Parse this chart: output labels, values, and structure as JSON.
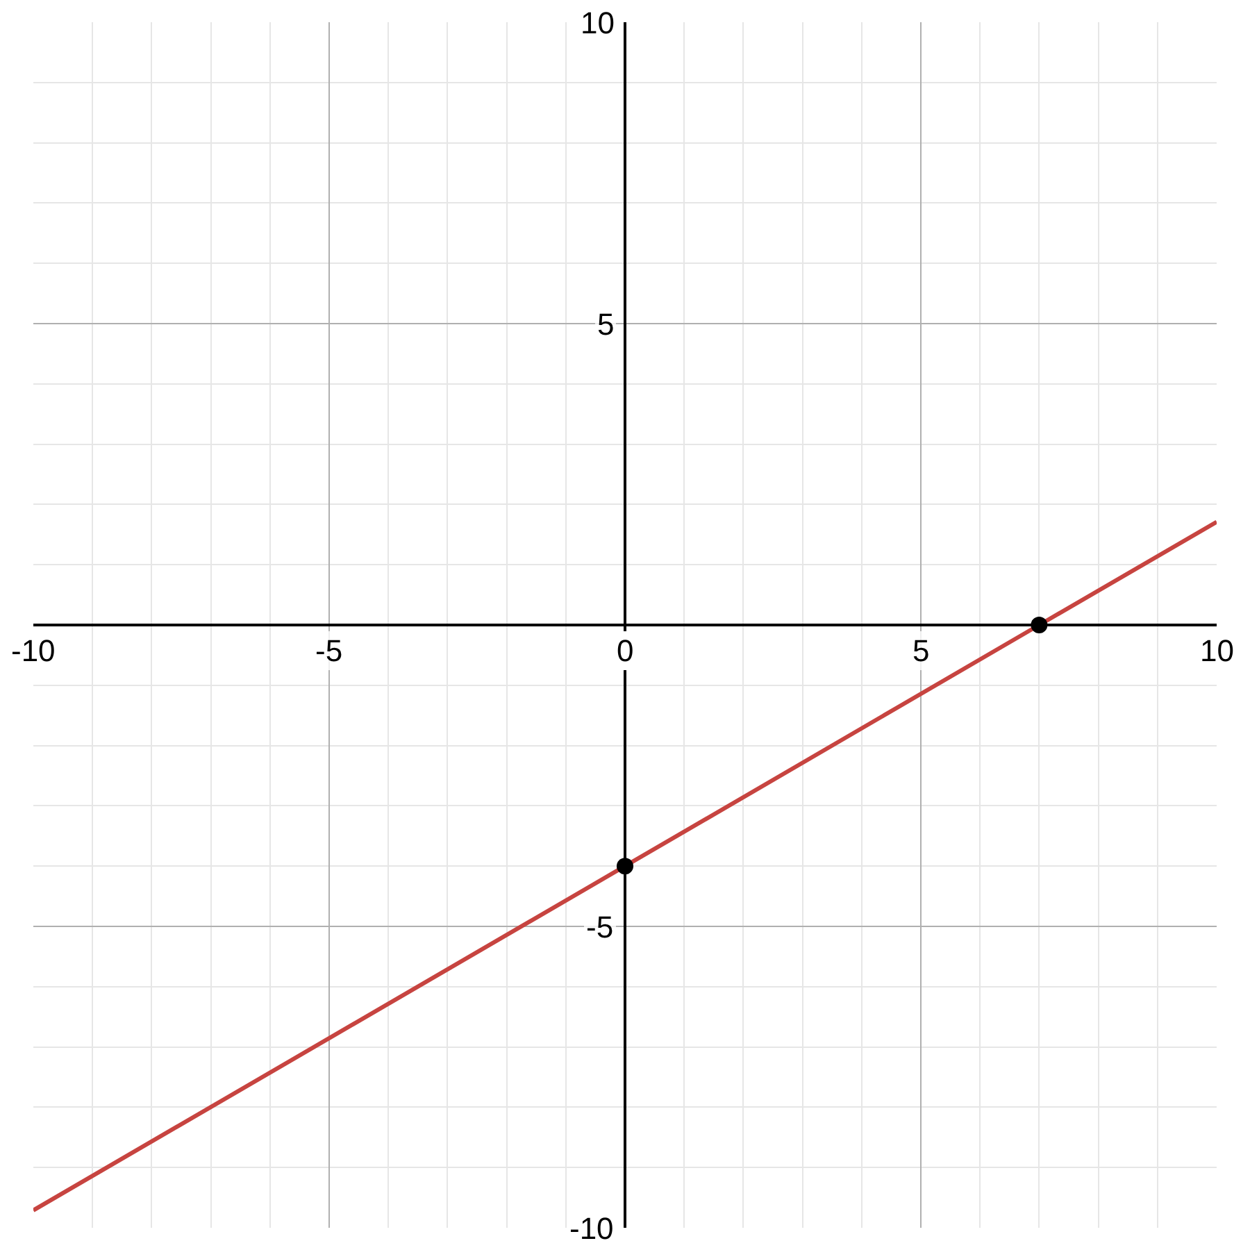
{
  "chart_data": {
    "type": "line",
    "x": [
      -10,
      0,
      7,
      10
    ],
    "series": [
      {
        "color": "#c74440",
        "values": [
          -9.71,
          -4,
          0,
          1.71
        ]
      },
      {
        "type": "scatter",
        "color": "#000000",
        "x": [
          0,
          7
        ],
        "values": [
          -4,
          0
        ],
        "marker": "circle"
      }
    ],
    "xlim": [
      -10,
      10
    ],
    "ylim": [
      -10,
      10
    ],
    "xticks": [
      -10,
      -5,
      0,
      5,
      10
    ],
    "yticks": [
      -10,
      -5,
      5,
      10
    ],
    "grid": true,
    "legend": false
  }
}
